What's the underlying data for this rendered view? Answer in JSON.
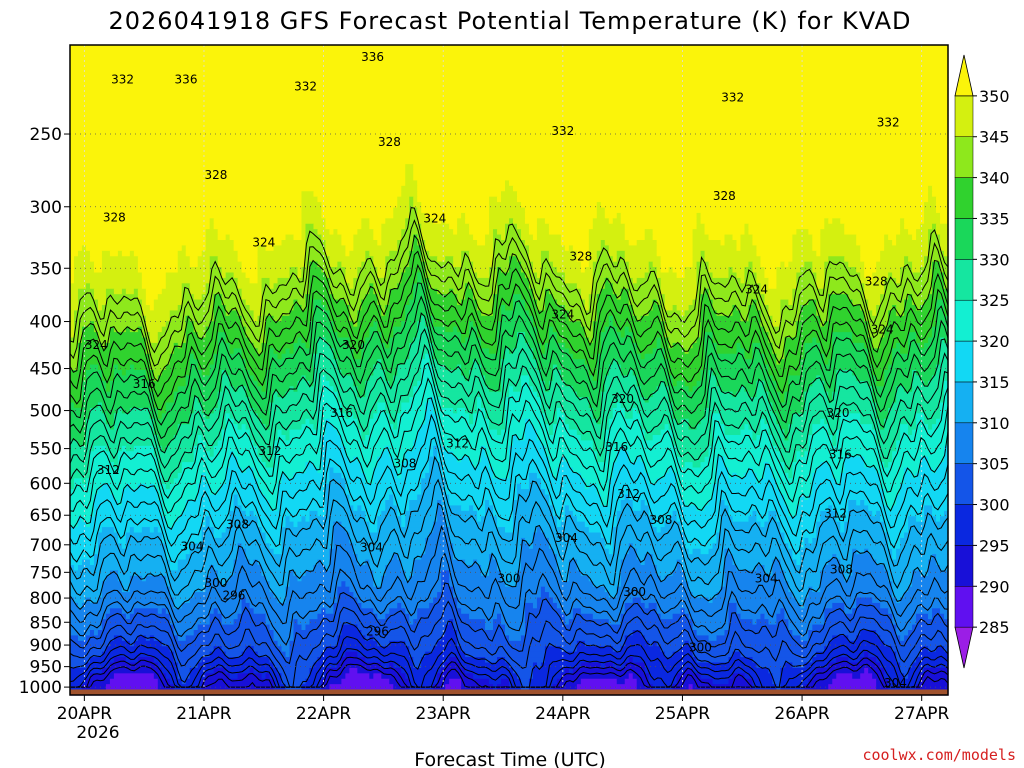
{
  "chart_data": {
    "type": "heatmap",
    "title": "2026041918 GFS Forecast Potential Temperature (K) for KVAD",
    "xlabel": "Forecast Time (UTC)",
    "ylabel": "",
    "credit": "coolwx.com/models",
    "x_ticks": [
      "20APR",
      "21APR",
      "22APR",
      "23APR",
      "24APR",
      "25APR",
      "26APR",
      "27APR"
    ],
    "x_first_year": "2026",
    "x_range_days": [
      -0.12,
      7.22
    ],
    "y_ticks": [
      250,
      300,
      350,
      400,
      450,
      500,
      550,
      600,
      650,
      700,
      750,
      800,
      850,
      900,
      950,
      1000
    ],
    "y_range_hpa": [
      200,
      1020
    ],
    "y_scale": "log-pressure",
    "colorbar": {
      "levels": [
        285,
        290,
        295,
        300,
        305,
        310,
        315,
        320,
        325,
        330,
        335,
        340,
        345,
        350
      ],
      "colors": [
        "#9b1ee6",
        "#6010f0",
        "#1810d8",
        "#0a28e0",
        "#1455e8",
        "#1684ee",
        "#15b0f2",
        "#12d8f4",
        "#13efd2",
        "#15e6a0",
        "#1ad75a",
        "#30d22e",
        "#8ee81c",
        "#d4f010",
        "#fbf40a"
      ],
      "extend": "both",
      "position": "right"
    },
    "contour_labels": [
      {
        "value": "336",
        "time": 2.41,
        "p": 206
      },
      {
        "value": "336",
        "time": 0.85,
        "p": 218
      },
      {
        "value": "332",
        "time": 0.32,
        "p": 218
      },
      {
        "value": "332",
        "time": 1.85,
        "p": 222
      },
      {
        "value": "332",
        "time": 5.42,
        "p": 228
      },
      {
        "value": "332",
        "time": 4.0,
        "p": 248
      },
      {
        "value": "332",
        "time": 6.72,
        "p": 243
      },
      {
        "value": "328",
        "time": 2.55,
        "p": 255
      },
      {
        "value": "328",
        "time": 1.1,
        "p": 277
      },
      {
        "value": "328",
        "time": 0.25,
        "p": 308
      },
      {
        "value": "328",
        "time": 5.35,
        "p": 292
      },
      {
        "value": "328",
        "time": 4.15,
        "p": 340
      },
      {
        "value": "328",
        "time": 6.62,
        "p": 362
      },
      {
        "value": "324",
        "time": 2.93,
        "p": 309
      },
      {
        "value": "324",
        "time": 1.5,
        "p": 328
      },
      {
        "value": "324",
        "time": 5.62,
        "p": 369
      },
      {
        "value": "324",
        "time": 4.0,
        "p": 393
      },
      {
        "value": "324",
        "time": 6.67,
        "p": 408
      },
      {
        "value": "324",
        "time": 0.1,
        "p": 424
      },
      {
        "value": "320",
        "time": 2.25,
        "p": 424
      },
      {
        "value": "320",
        "time": 4.5,
        "p": 486
      },
      {
        "value": "320",
        "time": 6.3,
        "p": 503
      },
      {
        "value": "316",
        "time": 0.5,
        "p": 468
      },
      {
        "value": "316",
        "time": 2.15,
        "p": 503
      },
      {
        "value": "316",
        "time": 4.45,
        "p": 548
      },
      {
        "value": "316",
        "time": 6.32,
        "p": 558
      },
      {
        "value": "312",
        "time": 0.2,
        "p": 580
      },
      {
        "value": "312",
        "time": 1.55,
        "p": 553
      },
      {
        "value": "312",
        "time": 3.12,
        "p": 543
      },
      {
        "value": "312",
        "time": 4.55,
        "p": 616
      },
      {
        "value": "312",
        "time": 6.28,
        "p": 647
      },
      {
        "value": "308",
        "time": 2.68,
        "p": 571
      },
      {
        "value": "308",
        "time": 1.28,
        "p": 665
      },
      {
        "value": "308",
        "time": 4.82,
        "p": 658
      },
      {
        "value": "308",
        "time": 6.33,
        "p": 745
      },
      {
        "value": "304",
        "time": 0.9,
        "p": 703
      },
      {
        "value": "304",
        "time": 2.4,
        "p": 705
      },
      {
        "value": "304",
        "time": 4.03,
        "p": 688
      },
      {
        "value": "304",
        "time": 5.7,
        "p": 762
      },
      {
        "value": "304",
        "time": 6.78,
        "p": 990
      },
      {
        "value": "300",
        "time": 1.1,
        "p": 770
      },
      {
        "value": "300",
        "time": 3.55,
        "p": 762
      },
      {
        "value": "300",
        "time": 4.6,
        "p": 788
      },
      {
        "value": "300",
        "time": 5.15,
        "p": 905
      },
      {
        "value": "296",
        "time": 1.25,
        "p": 795
      },
      {
        "value": "296",
        "time": 2.45,
        "p": 870
      }
    ]
  }
}
